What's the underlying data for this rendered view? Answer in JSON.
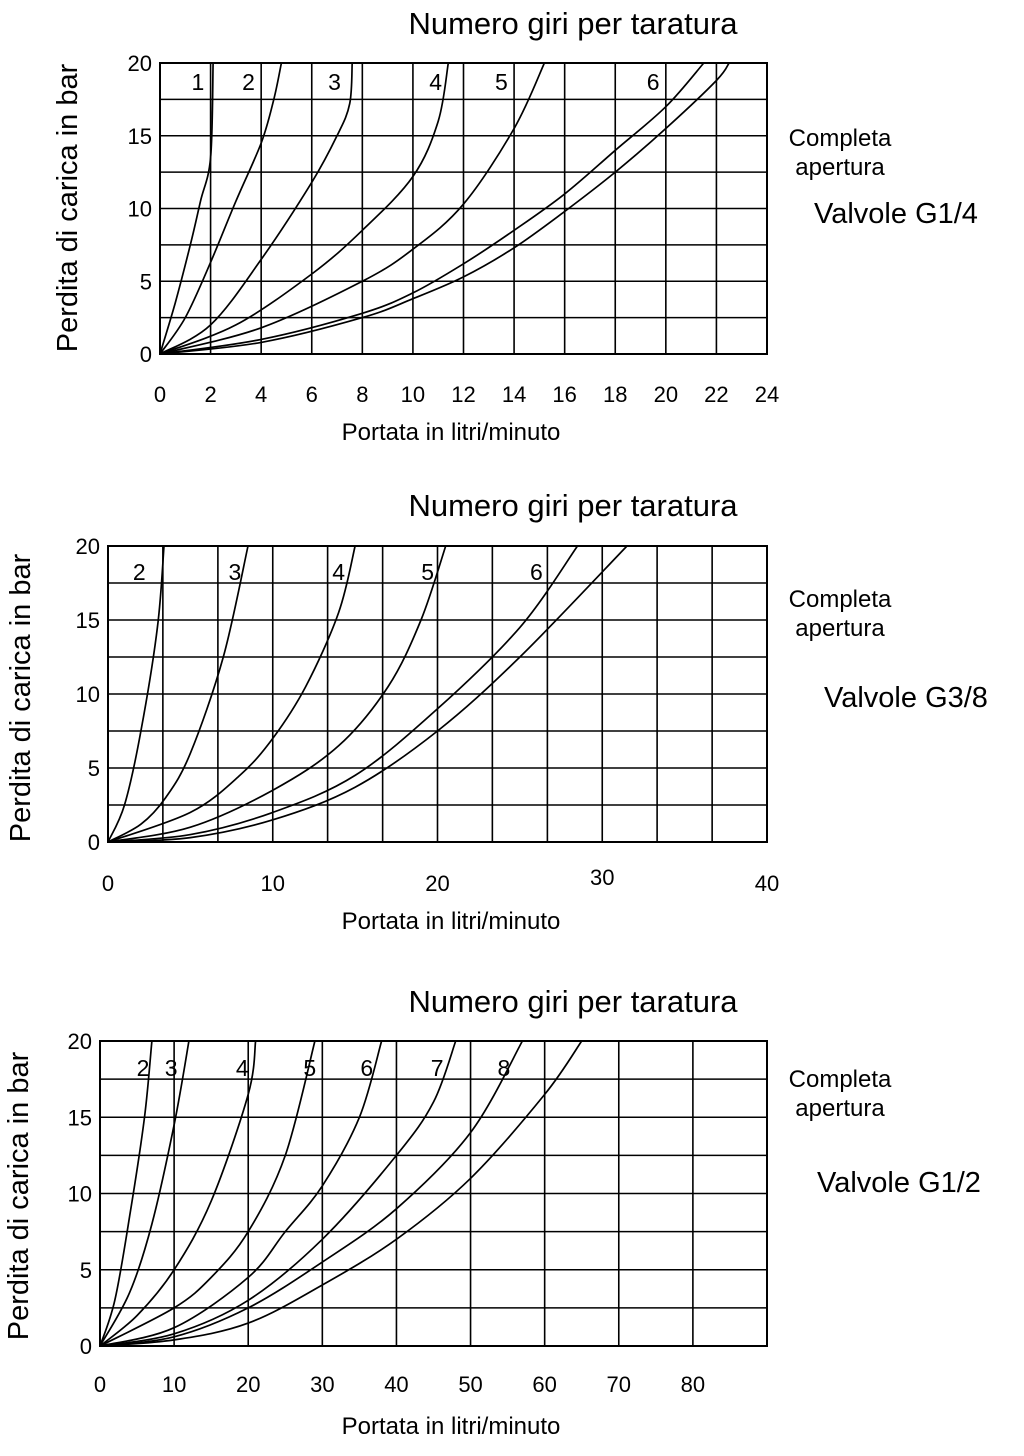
{
  "chart_data": [
    {
      "type": "line",
      "title": "Numero giri per taratura",
      "xlabel": "Portata in litri/minuto",
      "ylabel": "Perdita di carica in bar",
      "valve_label": "Valvole G1/4",
      "note_line1": "Completa",
      "note_line2": "apertura",
      "xlim": [
        0,
        24
      ],
      "ylim": [
        0,
        20
      ],
      "xticks": [
        0,
        2,
        4,
        6,
        8,
        10,
        12,
        14,
        16,
        18,
        20,
        22,
        24
      ],
      "yticks": [
        0,
        5,
        10,
        15,
        20
      ],
      "series": [
        {
          "name": "1",
          "x": [
            0,
            0.6,
            1.2,
            1.6,
            2.0,
            2.1
          ],
          "y": [
            0,
            3.5,
            7.5,
            10.5,
            13.5,
            20
          ]
        },
        {
          "name": "2",
          "x": [
            0,
            1,
            2,
            3,
            4,
            4.5,
            4.8
          ],
          "y": [
            0,
            2.5,
            6.3,
            10.5,
            14.5,
            17.5,
            20
          ]
        },
        {
          "name": "3",
          "x": [
            0,
            2,
            4,
            6,
            7,
            7.5,
            7.6
          ],
          "y": [
            0,
            2.0,
            6.5,
            11.8,
            15.0,
            17.2,
            20
          ]
        },
        {
          "name": "4",
          "x": [
            0,
            3,
            6,
            8,
            10,
            11,
            11.4
          ],
          "y": [
            0,
            2.0,
            5.5,
            8.5,
            12.2,
            16.0,
            20
          ]
        },
        {
          "name": "5",
          "x": [
            0,
            4,
            8,
            10,
            12,
            14,
            15.2
          ],
          "y": [
            0,
            1.8,
            5.0,
            7.2,
            10.3,
            15.5,
            20
          ]
        },
        {
          "name": "6",
          "x": [
            0,
            4,
            8,
            10,
            12,
            14,
            16,
            18,
            20,
            21.5
          ],
          "y": [
            0,
            1.0,
            2.8,
            4.2,
            6.2,
            8.5,
            11.0,
            14.0,
            17.0,
            20
          ]
        },
        {
          "x": [
            0,
            4,
            8,
            10,
            12,
            14,
            16,
            18,
            20,
            22,
            22.5
          ],
          "y": [
            0,
            0.8,
            2.5,
            3.8,
            5.3,
            7.3,
            9.8,
            12.5,
            15.5,
            18.8,
            20
          ]
        }
      ],
      "label_x": [
        1.5,
        3.5,
        6.9,
        10.9,
        13.5,
        19.5
      ]
    },
    {
      "type": "line",
      "title": "Numero giri per taratura",
      "xlabel": "Portata in litri/minuto",
      "ylabel": "Perdita di carica in bar",
      "valve_label": "Valvole G3/8",
      "note_line1": "Completa",
      "note_line2": "apertura",
      "xlim": [
        0,
        40
      ],
      "ylim": [
        0,
        20
      ],
      "xticks": [
        0,
        10,
        20,
        30,
        40
      ],
      "yticks": [
        0,
        5,
        10,
        15,
        20
      ],
      "series": [
        {
          "name": "2",
          "x": [
            0,
            1,
            2,
            3,
            3.4
          ],
          "y": [
            0,
            2.5,
            7.5,
            14.5,
            20
          ]
        },
        {
          "name": "3",
          "x": [
            0,
            2,
            3.5,
            5,
            7,
            8.5
          ],
          "y": [
            0,
            1.2,
            3.0,
            6.0,
            12.5,
            20
          ]
        },
        {
          "name": "4",
          "x": [
            0,
            5,
            8,
            10,
            12,
            14,
            15
          ],
          "y": [
            0,
            2.0,
            4.5,
            7.0,
            10.5,
            15.5,
            20
          ]
        },
        {
          "name": "5",
          "x": [
            0,
            5,
            10,
            14,
            17,
            19,
            20.5
          ],
          "y": [
            0,
            1.0,
            3.5,
            6.5,
            10.5,
            15.0,
            20
          ]
        },
        {
          "name": "6",
          "x": [
            0,
            5,
            10,
            15,
            20,
            25,
            28.5
          ],
          "y": [
            0,
            0.5,
            2.0,
            4.5,
            9.0,
            14.5,
            20
          ]
        },
        {
          "x": [
            0,
            5,
            10,
            15,
            20,
            25,
            31.5
          ],
          "y": [
            0,
            0.3,
            1.5,
            3.7,
            7.5,
            12.5,
            20
          ]
        }
      ],
      "label_x": [
        1.9,
        7.7,
        14.0,
        19.4,
        26.0
      ]
    },
    {
      "type": "line",
      "title": "Numero giri per taratura",
      "xlabel": "Portata in litri/minuto",
      "ylabel": "Perdita di carica in bar",
      "valve_label": "Valvole G1/2",
      "note_line1": "Completa",
      "note_line2": "apertura",
      "xlim": [
        0,
        90
      ],
      "ylim": [
        0,
        20
      ],
      "xticks": [
        0,
        10,
        20,
        30,
        40,
        50,
        60,
        70,
        80
      ],
      "yticks": [
        0,
        5,
        10,
        15,
        20
      ],
      "series": [
        {
          "name": "2",
          "x": [
            0,
            2,
            4,
            6,
            7
          ],
          "y": [
            0,
            3.0,
            8.5,
            15.0,
            20
          ]
        },
        {
          "name": "3",
          "x": [
            0,
            4,
            7,
            10,
            12
          ],
          "y": [
            0,
            3.5,
            8.0,
            14.5,
            20
          ]
        },
        {
          "name": "4",
          "x": [
            0,
            5,
            10,
            15,
            20,
            21
          ],
          "y": [
            0,
            2.0,
            5.0,
            9.5,
            16.5,
            20
          ]
        },
        {
          "name": "5",
          "x": [
            0,
            10,
            15,
            20,
            25,
            29
          ],
          "y": [
            0,
            2.5,
            4.5,
            7.5,
            12.5,
            20
          ]
        },
        {
          "name": "6",
          "x": [
            0,
            10,
            20,
            25,
            30,
            35,
            38
          ],
          "y": [
            0,
            1.2,
            4.5,
            7.5,
            10.5,
            15.0,
            20
          ]
        },
        {
          "name": "7",
          "x": [
            0,
            10,
            20,
            30,
            40,
            45,
            48
          ],
          "y": [
            0,
            0.8,
            3.0,
            7.0,
            12.5,
            16.0,
            20
          ]
        },
        {
          "name": "8",
          "x": [
            0,
            10,
            20,
            30,
            40,
            50,
            57
          ],
          "y": [
            0,
            0.6,
            2.5,
            5.5,
            9.0,
            14.0,
            20
          ]
        },
        {
          "x": [
            0,
            10,
            20,
            30,
            40,
            50,
            60,
            65
          ],
          "y": [
            0,
            0.4,
            1.5,
            4.0,
            7.0,
            11.0,
            16.5,
            20
          ]
        }
      ],
      "label_x": [
        5.8,
        9.6,
        19.2,
        28.3,
        36.0,
        45.5,
        54.5
      ]
    }
  ]
}
